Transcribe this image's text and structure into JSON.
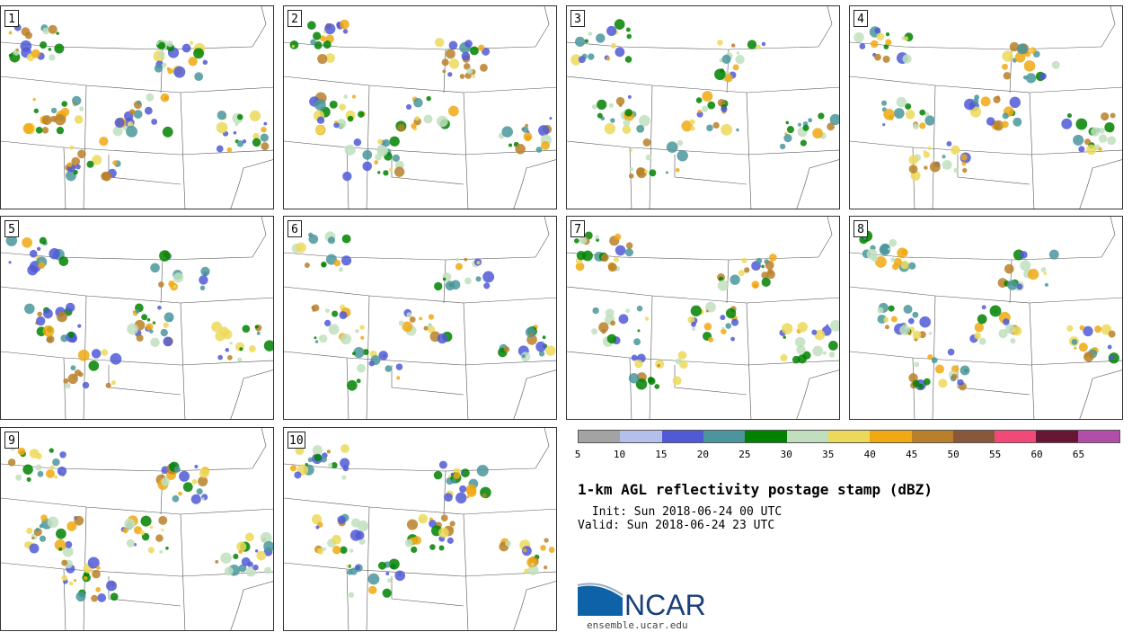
{
  "panels": [
    {
      "label": "1"
    },
    {
      "label": "2"
    },
    {
      "label": "3"
    },
    {
      "label": "4"
    },
    {
      "label": "5"
    },
    {
      "label": "6"
    },
    {
      "label": "7"
    },
    {
      "label": "8"
    },
    {
      "label": "9"
    },
    {
      "label": "10"
    }
  ],
  "colorbar": {
    "colors": [
      "#a3a3a3",
      "#b5bfec",
      "#5059d6",
      "#4a969c",
      "#008200",
      "#c1dfbe",
      "#ecd95a",
      "#f0a913",
      "#b98029",
      "#89583a",
      "#f14a78",
      "#671734",
      "#b24ea7"
    ],
    "ticks": [
      "5",
      "10",
      "15",
      "20",
      "25",
      "30",
      "35",
      "40",
      "45",
      "50",
      "55",
      "60",
      "65"
    ]
  },
  "title": "1-km AGL reflectivity postage stamp (dBZ)",
  "init_text": " Init: Sun 2018-06-24 00 UTC",
  "valid_text": "Valid: Sun 2018-06-24 23 UTC",
  "logo": {
    "name": "NCAR",
    "url": "ensemble.ucar.edu"
  }
}
